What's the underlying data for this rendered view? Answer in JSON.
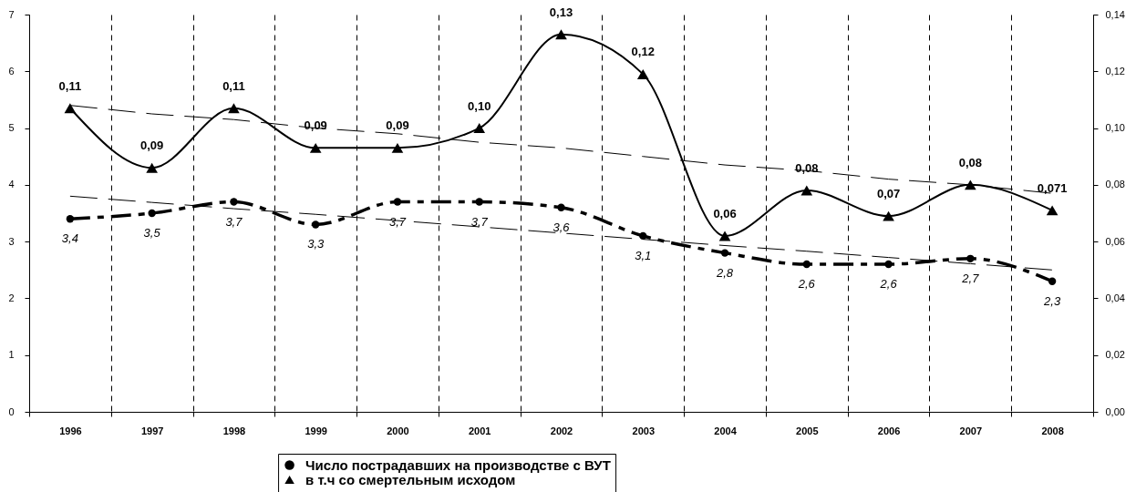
{
  "chart_data": {
    "type": "line",
    "categories": [
      "1996",
      "1997",
      "1998",
      "1999",
      "2000",
      "2001",
      "2002",
      "2003",
      "2004",
      "2005",
      "2006",
      "2007",
      "2008"
    ],
    "ylim": [
      0,
      7
    ],
    "yticks": [
      0,
      1,
      2,
      3,
      4,
      5,
      6,
      7
    ],
    "y2lim": [
      0,
      0.14
    ],
    "y2ticks": [
      {
        "value": 0,
        "label": "0,00"
      },
      {
        "value": 0.02,
        "label": "0,02"
      },
      {
        "value": 0.04,
        "label": "0,04"
      },
      {
        "value": 0.06,
        "label": "0,06"
      },
      {
        "value": 0.08,
        "label": "0,08"
      },
      {
        "value": 0.1,
        "label": "0,10"
      },
      {
        "value": 0.12,
        "label": "0,12"
      },
      {
        "value": 0.14,
        "label": "0,14"
      }
    ],
    "grid": "x",
    "legend": "bottom",
    "series": [
      {
        "name": "Число пострадавших на производстве с ВУТ",
        "color": "#000000",
        "values": [
          3.4,
          3.5,
          3.7,
          3.3,
          3.7,
          3.7,
          3.6,
          3.1,
          2.8,
          2.6,
          2.6,
          2.7,
          2.3
        ],
        "value_labels": [
          "3,4",
          "3,5",
          "3,7",
          "3,3",
          "3,7",
          "3,7",
          "3,6",
          "3,1",
          "2,8",
          "2,6",
          "2,6",
          "2,7",
          "2,3"
        ],
        "line_style": "dashed",
        "marker": "circle"
      },
      {
        "name": "в т.ч со смертельным исходом",
        "color": "#000000",
        "axis": "y2",
        "values": [
          0.107,
          0.086,
          0.107,
          0.093,
          0.093,
          0.1,
          0.133,
          0.119,
          0.062,
          0.078,
          0.069,
          0.08,
          0.071
        ],
        "value_labels": [
          "0,11",
          "0,09",
          "0,11",
          "0,09",
          "0,09",
          "0,10",
          "0,13",
          "0,12",
          "0,06",
          "0,08",
          "0,07",
          "0,08",
          "0,071"
        ],
        "line_style": "solid",
        "marker": "triangle"
      },
      {
        "type": "line",
        "values": [
          3.8,
          3.69,
          3.58,
          3.48,
          3.37,
          3.26,
          3.15,
          3.04,
          2.93,
          2.83,
          2.72,
          2.61,
          2.5
        ],
        "color": "#000000",
        "line_style": "dashed",
        "marker": "none"
      },
      {
        "type": "line",
        "values": [
          0.108,
          0.105,
          0.103,
          0.1,
          0.098,
          0.095,
          0.093,
          0.09,
          0.087,
          0.085,
          0.082,
          0.08,
          0.077
        ],
        "color": "#000000",
        "axis": "y2",
        "line_style": "dashed",
        "marker": "none"
      }
    ]
  }
}
